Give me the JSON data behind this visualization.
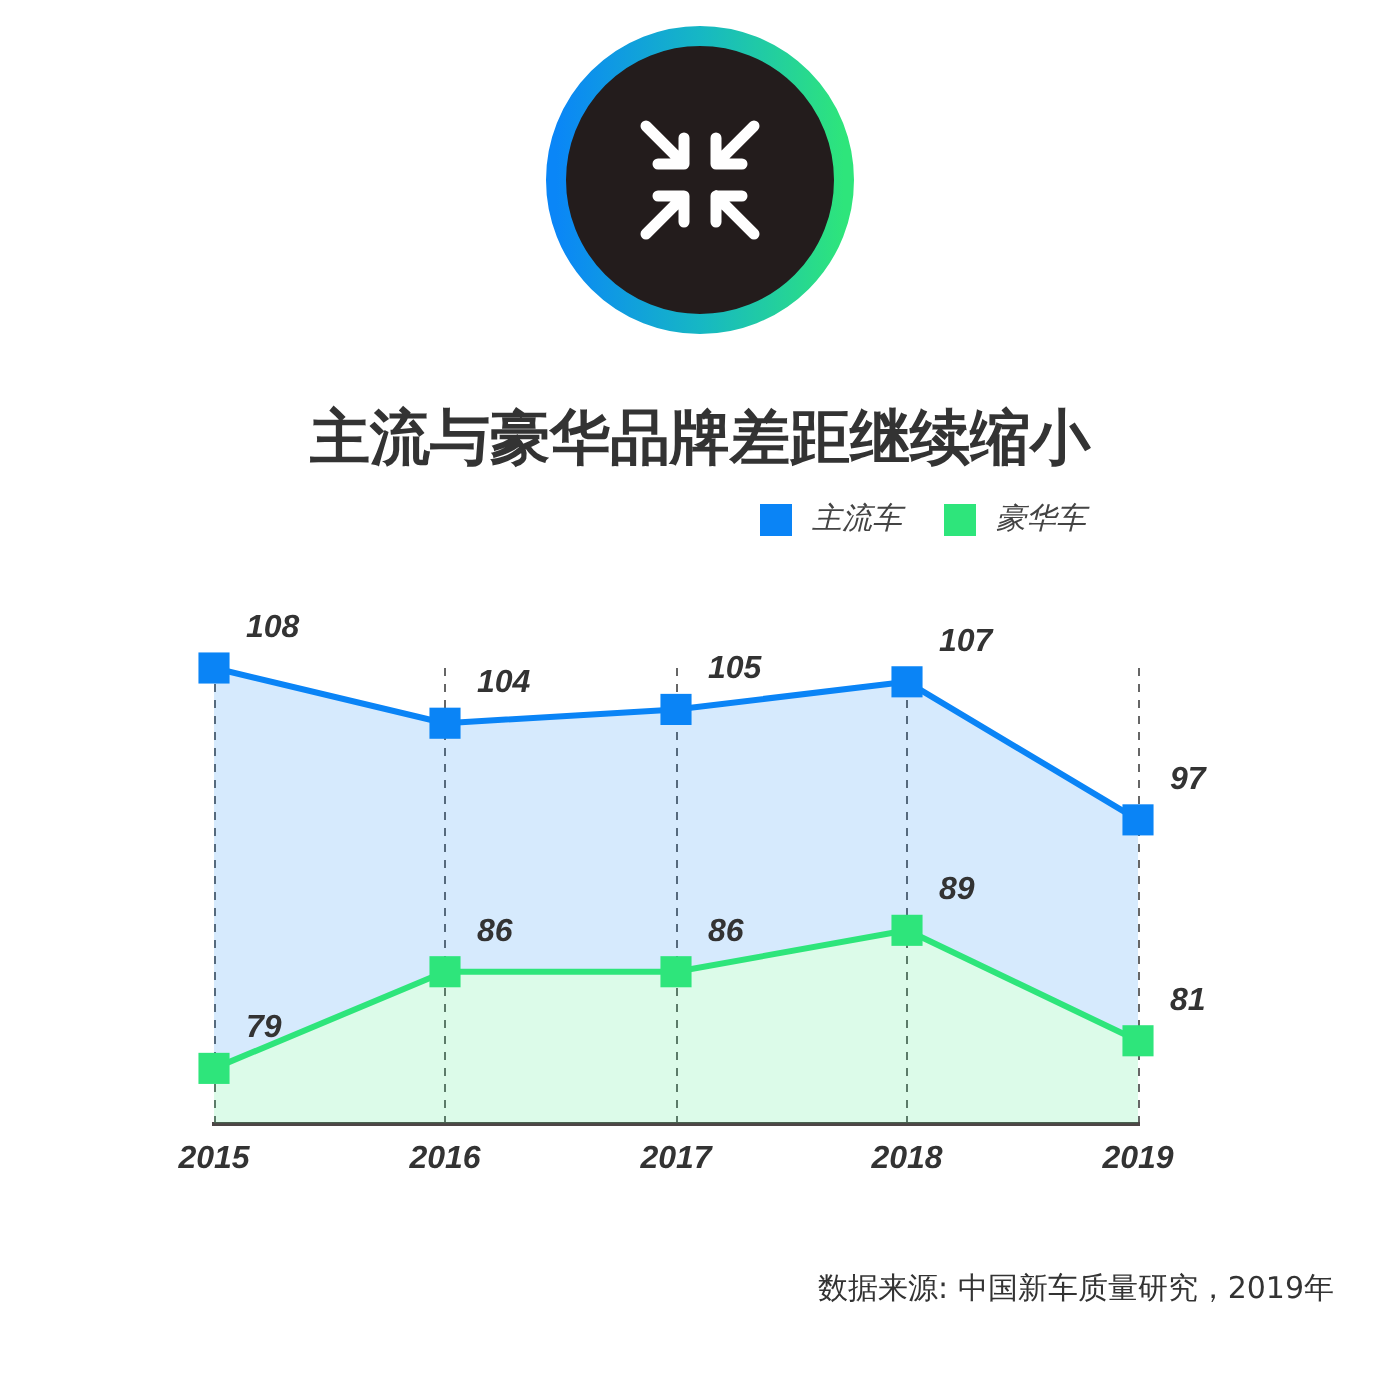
{
  "chart_data": {
    "type": "area",
    "title": "主流与豪华品牌差距继续缩小",
    "categories": [
      "2015",
      "2016",
      "2017",
      "2018",
      "2019"
    ],
    "series": [
      {
        "name": "主流车",
        "color": "#0a84f6",
        "values": [
          108,
          104,
          105,
          107,
          97
        ]
      },
      {
        "name": "豪华车",
        "color": "#2ee57b",
        "values": [
          79,
          86,
          86,
          89,
          81
        ]
      }
    ],
    "ylim": [
      75,
      108
    ],
    "data_labels": true,
    "grid": "x",
    "legend": "top right",
    "marker": "square",
    "line_style": "solid",
    "tick_labels": "x",
    "annotations": [
      "数据来源: 中国新车质量研究，2019年"
    ]
  }
}
